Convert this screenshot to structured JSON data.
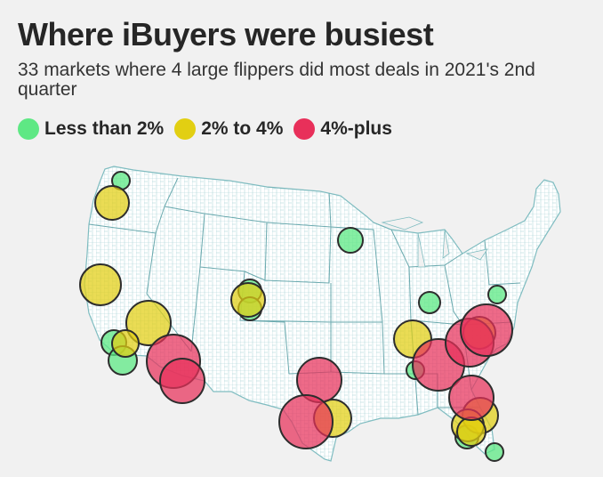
{
  "title": "Where iBuyers were busiest",
  "subtitle": "33 markets where 4 large flippers did most deals in 2021's 2nd quarter",
  "legend": [
    {
      "label": "Less than 2%",
      "color": "#5ee884"
    },
    {
      "label": "2% to 4%",
      "color": "#e2cf12"
    },
    {
      "label": "4%-plus",
      "color": "#e8305a"
    }
  ],
  "colors": {
    "background": "#f1f1f1",
    "map_fill": "#ffffff",
    "map_stroke": "#7fbcc0",
    "circle_stroke": "#333333"
  },
  "markets_count": 33
}
